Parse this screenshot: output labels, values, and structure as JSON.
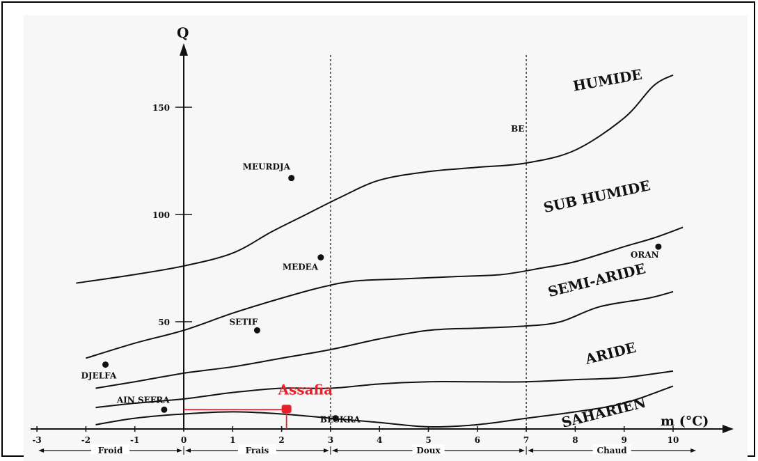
{
  "chart_data": {
    "type": "scatter",
    "xlabel": "m (°C)",
    "ylabel": "Q",
    "xlim": [
      -3,
      10.5
    ],
    "ylim": [
      0,
      170
    ],
    "x_ticks": [
      "-3",
      "-2",
      "-1",
      "0",
      "1",
      "2",
      "3",
      "4",
      "5",
      "6",
      "7",
      "8",
      "9",
      "10"
    ],
    "y_ticks": [
      "50",
      "100",
      "150"
    ],
    "y_tick_values": [
      50,
      100,
      150
    ],
    "x_ticks_values": [
      -3,
      -2,
      -1,
      0,
      1,
      2,
      3,
      4,
      5,
      6,
      7,
      8,
      9,
      10
    ],
    "vertical_dashed_lines": [
      3,
      7
    ],
    "temperature_classes": [
      {
        "label": "Froid",
        "from": -3,
        "to": 0
      },
      {
        "label": "Frais",
        "from": 0,
        "to": 3
      },
      {
        "label": "Doux",
        "from": 3,
        "to": 7
      },
      {
        "label": "Chaud",
        "from": 7,
        "to": 10.5
      }
    ],
    "zones": [
      "HUMIDE",
      "SUB HUMIDE",
      "SEMI-ARIDE",
      "ARIDE",
      "SAHARIEN"
    ],
    "boundaries": [
      {
        "name": "humide/sub-humide",
        "points": [
          [
            -2.2,
            68
          ],
          [
            -1,
            72
          ],
          [
            0,
            76
          ],
          [
            1,
            82
          ],
          [
            1.8,
            92
          ],
          [
            2.5,
            100
          ],
          [
            3.2,
            108
          ],
          [
            4,
            116
          ],
          [
            5,
            120
          ],
          [
            6,
            122
          ],
          [
            7,
            124
          ],
          [
            8,
            130
          ],
          [
            9,
            145
          ],
          [
            9.6,
            160
          ],
          [
            10,
            165
          ]
        ]
      },
      {
        "name": "sub-humide/semi-aride",
        "points": [
          [
            -2,
            33
          ],
          [
            -1,
            40
          ],
          [
            0,
            46
          ],
          [
            1,
            54
          ],
          [
            2,
            61
          ],
          [
            2.8,
            66
          ],
          [
            3.5,
            69
          ],
          [
            4.5,
            70
          ],
          [
            5.5,
            71
          ],
          [
            6.5,
            72
          ],
          [
            7.3,
            75
          ],
          [
            8,
            78
          ],
          [
            9,
            85
          ],
          [
            9.6,
            89
          ],
          [
            10.2,
            94
          ]
        ]
      },
      {
        "name": "semi-aride/aride",
        "points": [
          [
            -1.8,
            19
          ],
          [
            -1,
            22
          ],
          [
            0,
            26
          ],
          [
            1,
            29
          ],
          [
            2,
            33
          ],
          [
            3,
            37
          ],
          [
            4,
            42
          ],
          [
            5,
            46
          ],
          [
            6,
            47
          ],
          [
            7,
            48
          ],
          [
            7.7,
            50
          ],
          [
            8.5,
            57
          ],
          [
            9.5,
            61
          ],
          [
            10,
            64
          ]
        ]
      },
      {
        "name": "aride/saharien",
        "points": [
          [
            -1.8,
            10
          ],
          [
            -1,
            12
          ],
          [
            0,
            14
          ],
          [
            1,
            17
          ],
          [
            2,
            19
          ],
          [
            3,
            19
          ],
          [
            4,
            21
          ],
          [
            5,
            22
          ],
          [
            6,
            22
          ],
          [
            7,
            22
          ],
          [
            8,
            23
          ],
          [
            9,
            24
          ],
          [
            10,
            27
          ]
        ]
      },
      {
        "name": "saharien lower",
        "points": [
          [
            -1.8,
            2
          ],
          [
            -1,
            5
          ],
          [
            0,
            7
          ],
          [
            1,
            8
          ],
          [
            2,
            7
          ],
          [
            3,
            5
          ],
          [
            4,
            3
          ],
          [
            5,
            1
          ],
          [
            6,
            2
          ],
          [
            7,
            5
          ],
          [
            8,
            8
          ],
          [
            9,
            12
          ],
          [
            10,
            20
          ]
        ]
      }
    ],
    "stations": [
      {
        "name": "MEURDJA",
        "x": 2.2,
        "y": 117
      },
      {
        "name": "MEDEA",
        "x": 2.8,
        "y": 80
      },
      {
        "name": "SETIF",
        "x": 1.5,
        "y": 46
      },
      {
        "name": "DJELFA",
        "x": -1.6,
        "y": 30
      },
      {
        "name": "AIN SEFRA",
        "x": -0.4,
        "y": 9
      },
      {
        "name": "BESKRA",
        "x": 3.1,
        "y": 5
      },
      {
        "name": "ORAN",
        "x": 9.7,
        "y": 85
      },
      {
        "name": "BE",
        "x": 7,
        "y": 140
      }
    ],
    "highlight": {
      "name": "Assafia",
      "x": 2.1,
      "y": 9,
      "color": "#e8202a"
    }
  }
}
